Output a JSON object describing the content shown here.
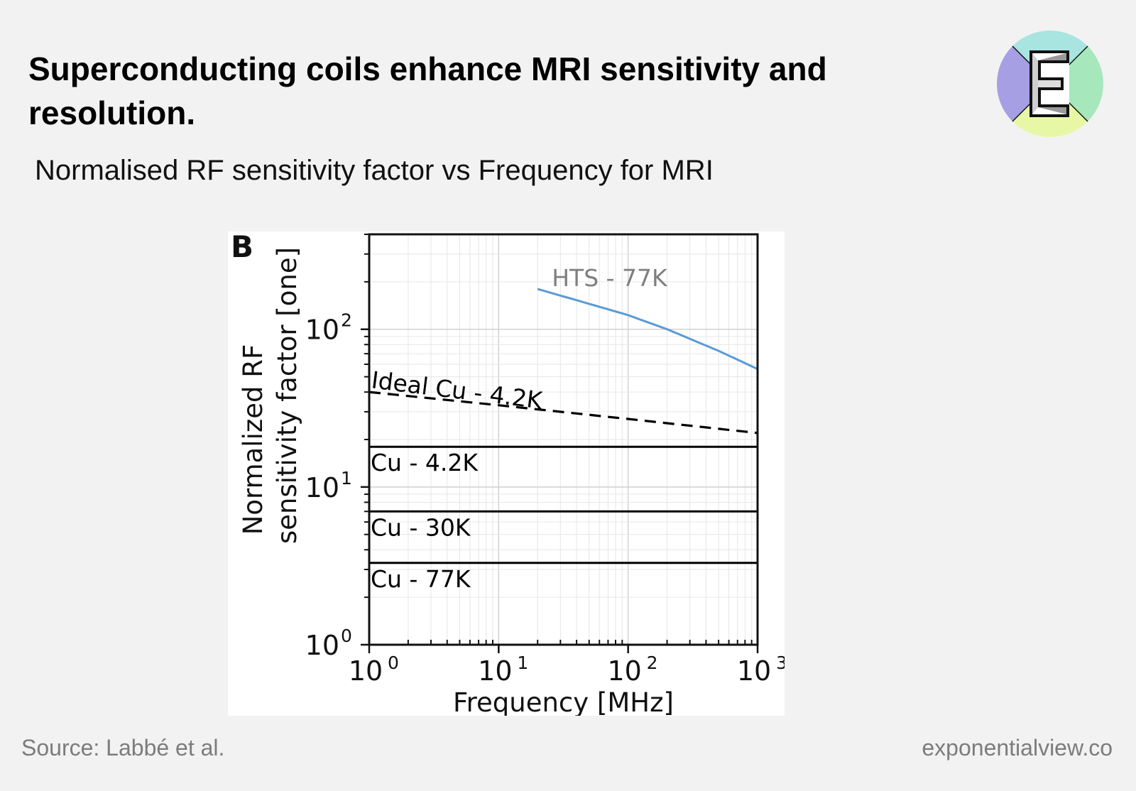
{
  "header": {
    "title": "Superconducting coils enhance MRI sensitivity and resolution.",
    "subtitle": "Normalised RF sensitivity factor vs Frequency for MRI"
  },
  "logo": {
    "letter": "E",
    "colors": {
      "top": "#a8e4e0",
      "right": "#a6e8bc",
      "bottom": "#e8f7a6",
      "left": "#a79fe4"
    }
  },
  "footer": {
    "source": "Source: Labbé et al.",
    "site": "exponentialview.co"
  },
  "chart_data": {
    "type": "line",
    "panel_label": "B",
    "title": "",
    "xlabel": "Frequency [MHz]",
    "ylabel_line1": "Normalized RF",
    "ylabel_line2": "sensitivity factor [one]",
    "xscale": "log",
    "yscale": "log",
    "xlim": [
      1,
      1000
    ],
    "ylim": [
      1,
      400
    ],
    "grid": true,
    "x_ticks": [
      {
        "value": 1,
        "base": "10",
        "exp": "0"
      },
      {
        "value": 10,
        "base": "10",
        "exp": "1"
      },
      {
        "value": 100,
        "base": "10",
        "exp": "2"
      },
      {
        "value": 1000,
        "base": "10",
        "exp": "3"
      }
    ],
    "y_ticks": [
      {
        "value": 1,
        "base": "10",
        "exp": "0"
      },
      {
        "value": 10,
        "base": "10",
        "exp": "1"
      },
      {
        "value": 100,
        "base": "10",
        "exp": "2"
      }
    ],
    "series": [
      {
        "name": "HTS - 77K",
        "color": "#5b9bd5",
        "style": "solid",
        "x": [
          20,
          50,
          100,
          200,
          500,
          1000
        ],
        "y": [
          180,
          145,
          123,
          100,
          73,
          56
        ],
        "label_color": "#7f7f7f"
      },
      {
        "name": "Ideal Cu - 4.2K",
        "color": "#000000",
        "style": "dashed",
        "x": [
          1,
          10,
          100,
          1000
        ],
        "y": [
          40,
          33,
          27,
          22
        ],
        "label_color": "#000000"
      },
      {
        "name": "Cu - 4.2K",
        "color": "#000000",
        "style": "solid",
        "x": [
          1,
          1000
        ],
        "y": [
          18,
          18
        ],
        "label_color": "#000000"
      },
      {
        "name": "Cu - 30K",
        "color": "#000000",
        "style": "solid",
        "x": [
          1,
          1000
        ],
        "y": [
          7,
          7
        ],
        "label_color": "#000000"
      },
      {
        "name": "Cu - 77K",
        "color": "#000000",
        "style": "solid",
        "x": [
          1,
          1000
        ],
        "y": [
          3.3,
          3.3
        ],
        "label_color": "#000000"
      }
    ]
  }
}
